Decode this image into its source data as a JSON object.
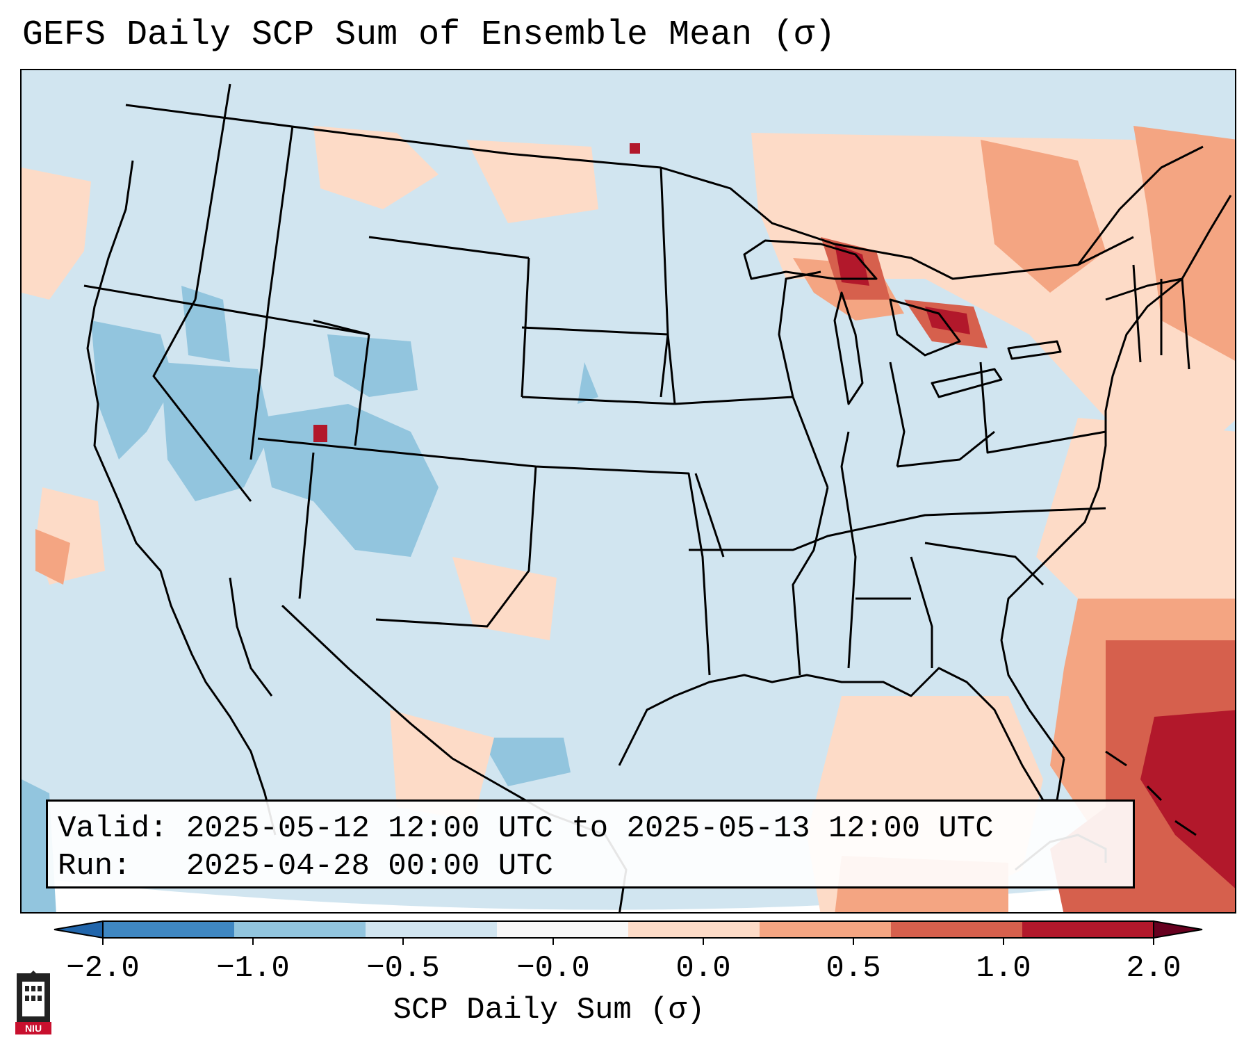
{
  "title": "GEFS Daily SCP Sum of Ensemble Mean (σ)",
  "info": {
    "valid_label": "Valid:",
    "valid_value": "2025-05-12 12:00 UTC to 2025-05-13 12:00 UTC",
    "run_label": "Run:",
    "run_value": "2025-04-28 00:00 UTC"
  },
  "colorbar": {
    "label": "SCP Daily Sum (σ)",
    "ticks": [
      "−2.0",
      "−1.0",
      "−0.5",
      "−0.0",
      "0.0",
      "0.5",
      "1.0",
      "2.0"
    ],
    "colors": [
      "#3f87c2",
      "#92c5de",
      "#d1e5f0",
      "#f7f7f7",
      "#fddbc7",
      "#f4a582",
      "#d6604d",
      "#b2182b"
    ]
  },
  "logo": {
    "text": "NIU"
  }
}
